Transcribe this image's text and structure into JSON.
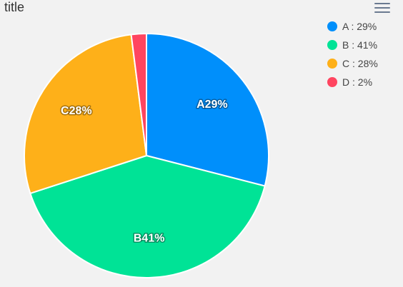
{
  "title": "title",
  "menu_icon": "hamburger-menu-icon",
  "chart_data": {
    "type": "pie",
    "title": "title",
    "slices": [
      {
        "name": "A",
        "value": 29,
        "color": "#008ffb",
        "label": "A29%",
        "legend": "A : 29%"
      },
      {
        "name": "B",
        "value": 41,
        "color": "#00e396",
        "label": "B41%",
        "legend": "B : 41%"
      },
      {
        "name": "C",
        "value": 28,
        "color": "#feb019",
        "label": "C28%",
        "legend": "C : 28%"
      },
      {
        "name": "D",
        "value": 2,
        "color": "#ff4560",
        "label": "",
        "legend": "D : 2%"
      }
    ],
    "legend_position": "top-right"
  }
}
